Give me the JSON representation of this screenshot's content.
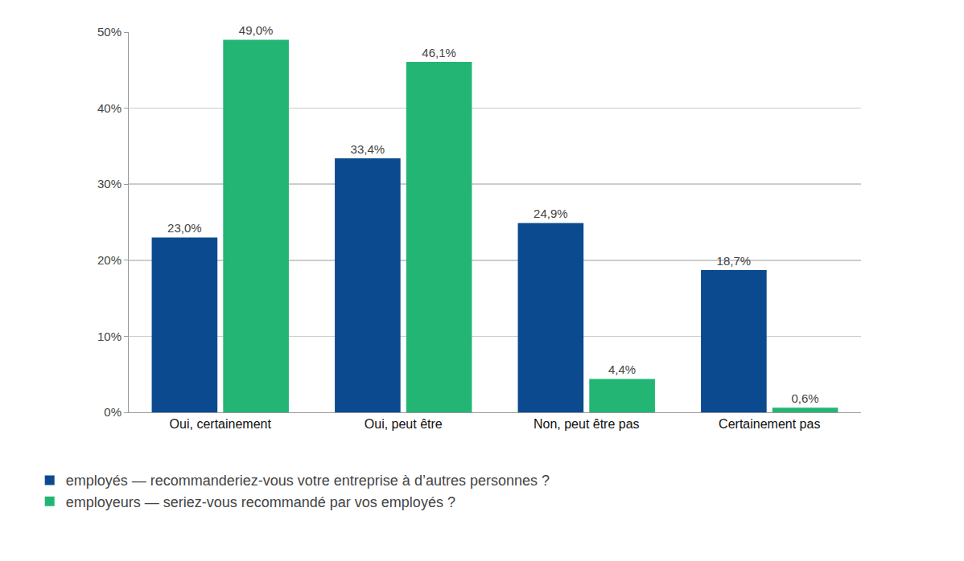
{
  "chart_data": {
    "type": "bar",
    "categories": [
      "Oui, certainement",
      "Oui, peut être",
      "Non, peut être pas",
      "Certainement pas"
    ],
    "series": [
      {
        "name": "employés — recommanderiez-vous votre entreprise à d’autres personnes ?",
        "color": "#0b4a8e",
        "values": [
          23.0,
          33.4,
          24.9,
          18.7
        ],
        "value_labels": [
          "23,0%",
          "33,4%",
          "24,9%",
          "18,7%"
        ]
      },
      {
        "name": "employeurs — seriez-vous recommandé par vos employés ?",
        "color": "#23b574",
        "values": [
          49.0,
          46.1,
          4.4,
          0.6
        ],
        "value_labels": [
          "49,0%",
          "46,1%",
          "4,4%",
          "0,6%"
        ]
      }
    ],
    "ylim": [
      0,
      50
    ],
    "yticks": [
      {
        "value": 0,
        "label": "0%"
      },
      {
        "value": 10,
        "label": "10%"
      },
      {
        "value": 20,
        "label": "20%"
      },
      {
        "value": 30,
        "label": "30%"
      },
      {
        "value": 40,
        "label": "40%"
      },
      {
        "value": 50,
        "label": "50%"
      }
    ],
    "grid": true,
    "data_labels": true,
    "legend": "bottom"
  }
}
